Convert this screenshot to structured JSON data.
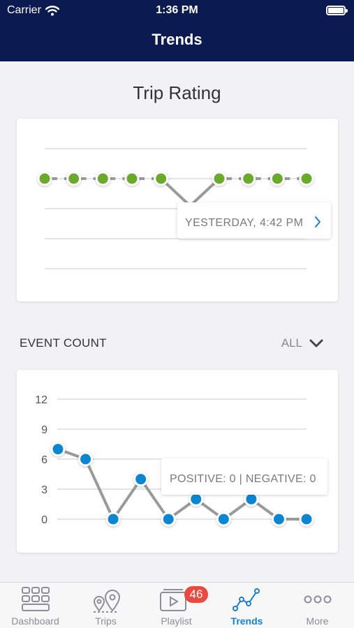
{
  "status_bar": {
    "carrier": "Carrier",
    "time": "1:36 PM",
    "wifi_icon": "wifi-icon",
    "battery_icon": "battery-icon"
  },
  "nav": {
    "title": "Trends"
  },
  "trip_rating": {
    "title": "Trip Rating",
    "tooltip": "YESTERDAY, 4:42 PM",
    "accent": "#6aaa2a"
  },
  "event_count": {
    "label": "EVENT COUNT",
    "filter": "ALL",
    "tooltip": "POSITIVE: 0 | NEGATIVE: 0",
    "accent": "#0f86d2"
  },
  "chart_data": [
    {
      "type": "line",
      "values": [
        1,
        1,
        1,
        1,
        1,
        0,
        1,
        1,
        1,
        1
      ],
      "grid": true
    },
    {
      "type": "line",
      "values": [
        7,
        6,
        0,
        4,
        0,
        2,
        0,
        2,
        0,
        0
      ],
      "yticks": [
        12,
        9,
        6,
        3,
        0
      ],
      "ylim": [
        0,
        12
      ],
      "grid": true
    }
  ],
  "tabs": [
    {
      "label": "Dashboard",
      "icon": "dashboard-icon"
    },
    {
      "label": "Trips",
      "icon": "map-pins-icon"
    },
    {
      "label": "Playlist",
      "icon": "video-playlist-icon",
      "badge": "46"
    },
    {
      "label": "Trends",
      "icon": "trends-icon",
      "active": true
    },
    {
      "label": "More",
      "icon": "more-icon"
    }
  ]
}
